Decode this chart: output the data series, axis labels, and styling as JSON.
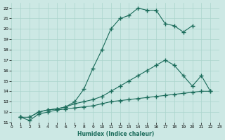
{
  "xlabel": "Humidex (Indice chaleur)",
  "bg_color": "#cce8e4",
  "grid_color": "#aad4cc",
  "line_color": "#1a6b5a",
  "xlim": [
    0,
    23
  ],
  "ylim": [
    11,
    22.5
  ],
  "xticks": [
    0,
    1,
    2,
    3,
    4,
    5,
    6,
    7,
    8,
    9,
    10,
    11,
    12,
    13,
    14,
    15,
    16,
    17,
    18,
    19,
    20,
    21,
    22,
    23
  ],
  "yticks": [
    11,
    12,
    13,
    14,
    15,
    16,
    17,
    18,
    19,
    20,
    21,
    22
  ],
  "series1_x": [
    1,
    2,
    3,
    4,
    5,
    6,
    7,
    8,
    9,
    10,
    11,
    12,
    13,
    14,
    15,
    16,
    17,
    18,
    19,
    20
  ],
  "series1_y": [
    11.5,
    11.5,
    12.0,
    12.2,
    12.3,
    12.5,
    13.0,
    14.2,
    16.2,
    18.0,
    20.0,
    21.0,
    21.3,
    22.0,
    21.8,
    21.8,
    20.5,
    20.3,
    19.7,
    20.3
  ],
  "series2_x": [
    1,
    2,
    3,
    4,
    5,
    6,
    7,
    8,
    9,
    10,
    11,
    12,
    13,
    14,
    15,
    16,
    17,
    18,
    19,
    20,
    21,
    22
  ],
  "series2_y": [
    11.5,
    11.5,
    12.0,
    12.2,
    12.3,
    12.5,
    12.8,
    13.0,
    13.2,
    13.5,
    14.0,
    14.5,
    15.0,
    15.5,
    16.0,
    16.5,
    17.0,
    16.5,
    15.5,
    14.5,
    15.5,
    14.0
  ],
  "series3_x": [
    1,
    2,
    3,
    4,
    5,
    6,
    7,
    8,
    9,
    10,
    11,
    12,
    13,
    14,
    15,
    16,
    17,
    18,
    19,
    20,
    21,
    22
  ],
  "series3_y": [
    11.5,
    11.2,
    11.8,
    12.0,
    12.2,
    12.3,
    12.4,
    12.5,
    12.6,
    12.8,
    13.0,
    13.1,
    13.2,
    13.3,
    13.4,
    13.5,
    13.6,
    13.7,
    13.8,
    13.9,
    14.0,
    14.0
  ]
}
